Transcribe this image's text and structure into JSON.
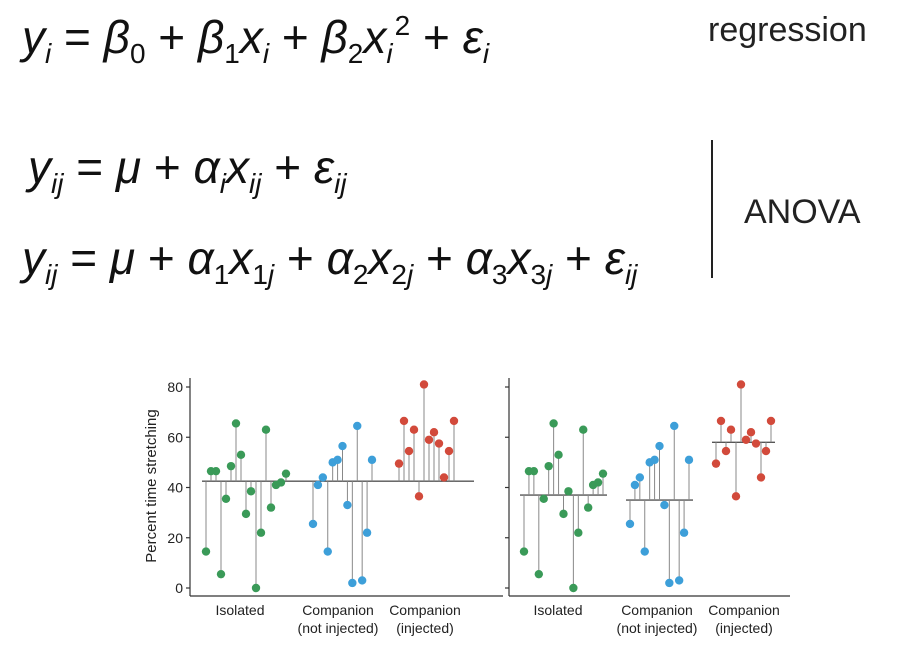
{
  "equations": {
    "regression": {
      "label": "regression"
    },
    "anova": {
      "label": "ANOVA"
    }
  },
  "chart_data": [
    {
      "type": "scatter",
      "title": "",
      "ylabel": "Percent time stretching",
      "xlabel": "",
      "ylim": [
        -4,
        84
      ],
      "yticks": [
        0,
        20,
        40,
        60,
        80
      ],
      "grid": false,
      "model": "single grand mean",
      "categories": [
        {
          "line1": "Isolated",
          "line2": ""
        },
        {
          "line1": "Companion",
          "line2": "(not injected)"
        },
        {
          "line1": "Companion",
          "line2": "(injected)"
        }
      ],
      "groups": [
        {
          "name": "Isolated",
          "color": "#3a9a58",
          "mean": 42.5,
          "values": [
            14.5,
            46.5,
            46.5,
            5.5,
            35.5,
            48.5,
            65.5,
            53.0,
            29.5,
            38.5,
            0.0,
            22.0,
            63.0,
            32.0,
            41.0,
            42.0,
            45.5
          ]
        },
        {
          "name": "Companion (not injected)",
          "color": "#3d9fd9",
          "mean": 42.5,
          "values": [
            25.5,
            41.0,
            44.0,
            14.5,
            50.0,
            51.0,
            56.5,
            33.0,
            2.0,
            64.5,
            3.0,
            22.0,
            51.0
          ]
        },
        {
          "name": "Companion (injected)",
          "color": "#d24a3b",
          "mean": 42.5,
          "values": [
            49.5,
            66.5,
            54.5,
            63.0,
            36.5,
            81.0,
            59.0,
            62.0,
            57.5,
            44.0,
            54.5,
            66.5
          ]
        }
      ]
    },
    {
      "type": "scatter",
      "title": "",
      "ylabel": "",
      "xlabel": "",
      "ylim": [
        -4,
        84
      ],
      "grid": false,
      "model": "separate group means",
      "categories": [
        {
          "line1": "Isolated",
          "line2": ""
        },
        {
          "line1": "Companion",
          "line2": "(not injected)"
        },
        {
          "line1": "Companion",
          "line2": "(injected)"
        }
      ],
      "groups": [
        {
          "name": "Isolated",
          "color": "#3a9a58",
          "mean": 37.0,
          "values": [
            14.5,
            46.5,
            46.5,
            5.5,
            35.5,
            48.5,
            65.5,
            53.0,
            29.5,
            38.5,
            0.0,
            22.0,
            63.0,
            32.0,
            41.0,
            42.0,
            45.5
          ]
        },
        {
          "name": "Companion (not injected)",
          "color": "#3d9fd9",
          "mean": 35.0,
          "values": [
            25.5,
            41.0,
            44.0,
            14.5,
            50.0,
            51.0,
            56.5,
            33.0,
            2.0,
            64.5,
            3.0,
            22.0,
            51.0
          ]
        },
        {
          "name": "Companion (injected)",
          "color": "#d24a3b",
          "mean": 58.0,
          "values": [
            49.5,
            66.5,
            54.5,
            63.0,
            36.5,
            81.0,
            59.0,
            62.0,
            57.5,
            44.0,
            54.5,
            66.5
          ]
        }
      ]
    }
  ]
}
